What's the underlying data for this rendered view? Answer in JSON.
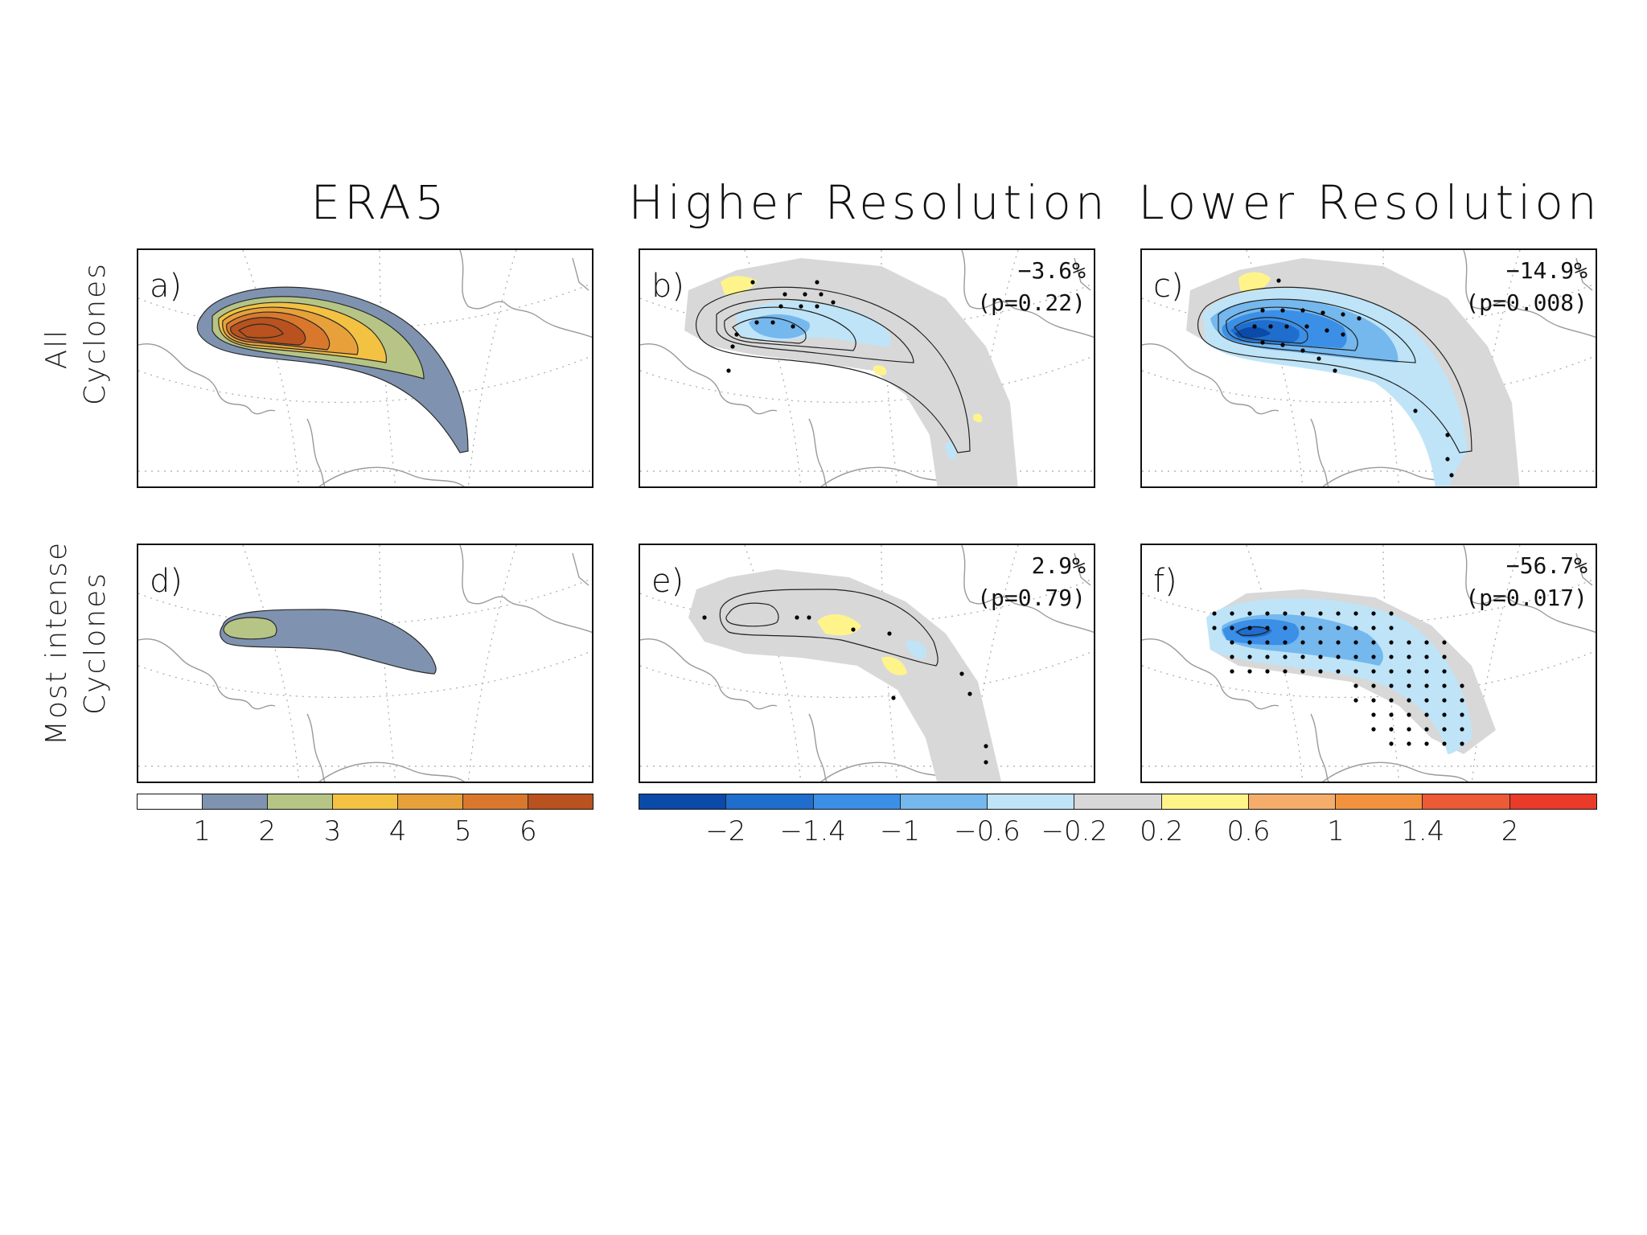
{
  "columns": [
    "ERA5",
    "Higher Resolution",
    "Lower Resolution"
  ],
  "rows": [
    "All Cyclones",
    "Most intense Cyclones"
  ],
  "colors": {
    "era5_levels": [
      "#ffffff",
      "#7f93b0",
      "#b6c585",
      "#f3c242",
      "#e8a13a",
      "#d9782d",
      "#b9521e"
    ],
    "diff_levels": [
      "#0a4aa8",
      "#1f6dcc",
      "#3b8fe6",
      "#74b8ee",
      "#bfe4f7",
      "#d8d8d8",
      "#fff48a",
      "#f6ad6a",
      "#f2923e",
      "#ec5a36",
      "#e93a2a"
    ]
  },
  "chart_data": [
    {
      "type": "heatmap",
      "panel": "a)",
      "column": "ERA5",
      "row": "All Cyclones",
      "stat": "",
      "p_value": "",
      "stippling": false,
      "max_level": 7
    },
    {
      "type": "heatmap",
      "panel": "b)",
      "column": "Higher Resolution",
      "row": "All Cyclones",
      "stat": "−3.6%",
      "p_value": "(p=0.22)",
      "stippling": true
    },
    {
      "type": "heatmap",
      "panel": "c)",
      "column": "Lower Resolution",
      "row": "All Cyclones",
      "stat": "−14.9%",
      "p_value": "(p=0.008)",
      "stippling": true
    },
    {
      "type": "heatmap",
      "panel": "d)",
      "column": "ERA5",
      "row": "Most intense Cyclones",
      "stat": "",
      "p_value": "",
      "stippling": false,
      "max_level": 3
    },
    {
      "type": "heatmap",
      "panel": "e)",
      "column": "Higher Resolution",
      "row": "Most intense Cyclones",
      "stat": "2.9%",
      "p_value": "(p=0.79)",
      "stippling": true
    },
    {
      "type": "heatmap",
      "panel": "f)",
      "column": "Lower Resolution",
      "row": "Most intense Cyclones",
      "stat": "−56.7%",
      "p_value": "(p=0.017)",
      "stippling": true
    }
  ],
  "colorbar_era5": {
    "ticks": [
      "1",
      "2",
      "3",
      "4",
      "5",
      "6"
    ]
  },
  "colorbar_diff": {
    "ticks": [
      "−2",
      "−1.4",
      "−1",
      "−0.6",
      "−0.2",
      "0.2",
      "0.6",
      "1",
      "1.4",
      "2"
    ]
  }
}
